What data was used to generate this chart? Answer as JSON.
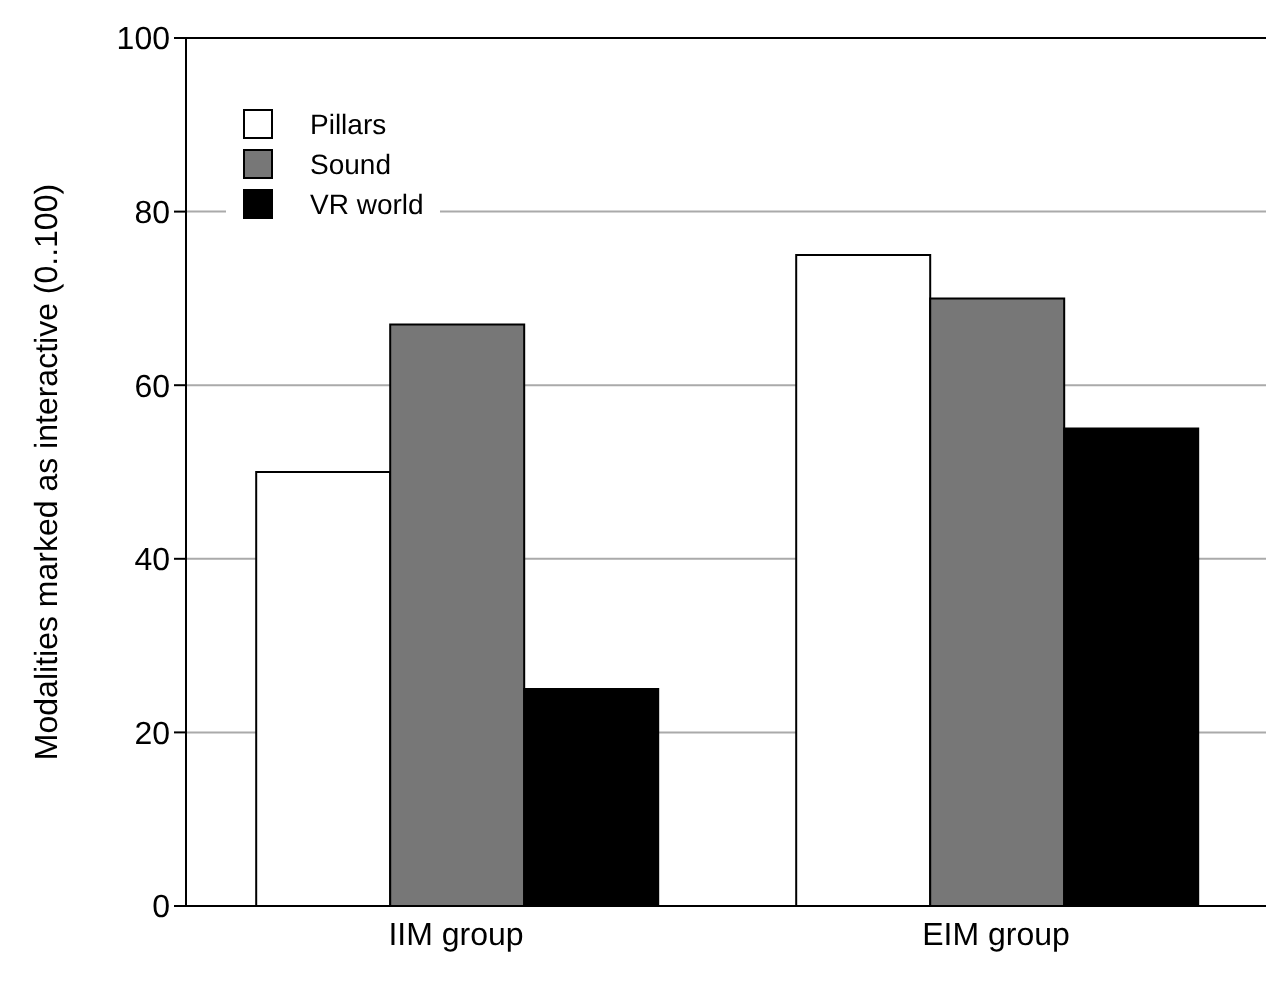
{
  "chart_data": {
    "type": "bar",
    "ylabel": "Modalities marked as interactive (0..100)",
    "categories": [
      "IIM group",
      "EIM group"
    ],
    "series": [
      {
        "name": "Pillars",
        "color": "#ffffff",
        "values": [
          50,
          75
        ]
      },
      {
        "name": "Sound",
        "color": "#777777",
        "values": [
          67,
          70
        ]
      },
      {
        "name": "VR world",
        "color": "#000000",
        "values": [
          25,
          55
        ]
      }
    ],
    "ylim": [
      0,
      100
    ],
    "yticks": [
      0,
      20,
      40,
      60,
      80,
      100
    ],
    "grid": "y",
    "legend": "top left"
  }
}
